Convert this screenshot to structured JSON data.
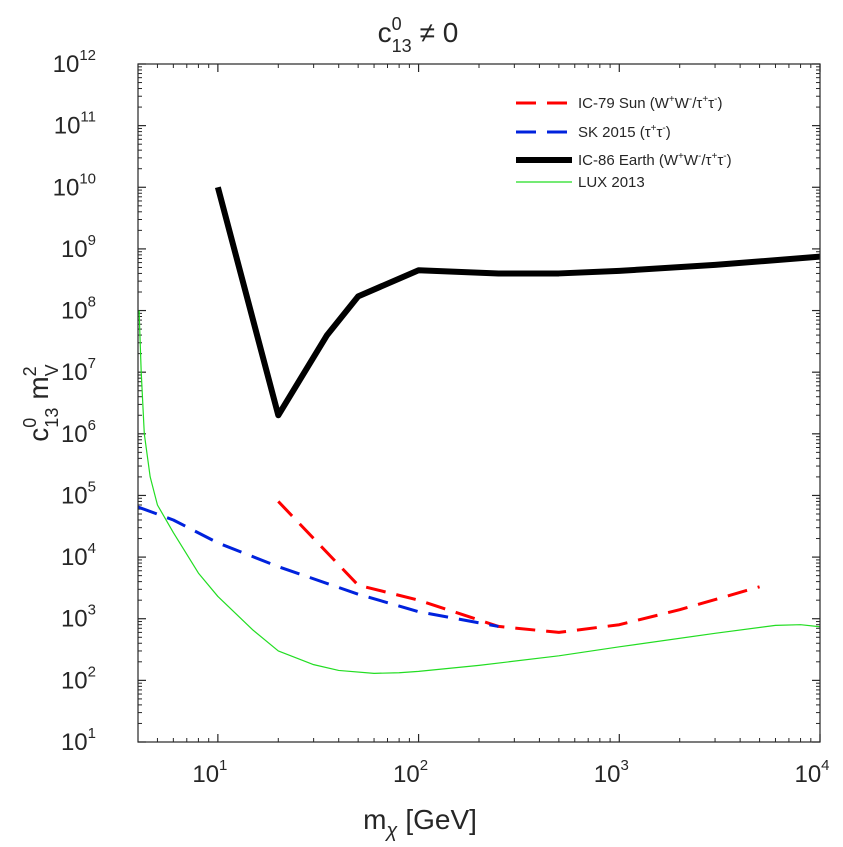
{
  "chart_data": {
    "type": "line",
    "title": {
      "base": "c",
      "sup": "0",
      "sub": "13",
      "rest": "≠ 0"
    },
    "xlabel": {
      "base": "m",
      "sub": "χ",
      "rest": "[GeV]"
    },
    "ylabel": {
      "c": "c",
      "c_sup": "0",
      "c_sub": "13",
      "m": "m",
      "m_sup": "2",
      "m_sub": "V"
    },
    "x_scale": "log",
    "y_scale": "log",
    "xlim": [
      4,
      10000
    ],
    "ylim": [
      10,
      1000000000000
    ],
    "grid": false,
    "legend_position": "top-right",
    "x_ticks": [
      {
        "base": "10",
        "exp": "1",
        "value": 10
      },
      {
        "base": "10",
        "exp": "2",
        "value": 100
      },
      {
        "base": "10",
        "exp": "3",
        "value": 1000
      },
      {
        "base": "10",
        "exp": "4",
        "value": 10000
      }
    ],
    "y_ticks": [
      {
        "base": "10",
        "exp": "1",
        "value": 10
      },
      {
        "base": "10",
        "exp": "2",
        "value": 100
      },
      {
        "base": "10",
        "exp": "3",
        "value": 1000
      },
      {
        "base": "10",
        "exp": "4",
        "value": 10000
      },
      {
        "base": "10",
        "exp": "5",
        "value": 100000
      },
      {
        "base": "10",
        "exp": "6",
        "value": 1000000
      },
      {
        "base": "10",
        "exp": "7",
        "value": 10000000
      },
      {
        "base": "10",
        "exp": "8",
        "value": 100000000
      },
      {
        "base": "10",
        "exp": "9",
        "value": 1000000000
      },
      {
        "base": "10",
        "exp": "10",
        "value": 10000000000
      },
      {
        "base": "10",
        "exp": "11",
        "value": 100000000000
      },
      {
        "base": "10",
        "exp": "12",
        "value": 1000000000000
      }
    ],
    "series": [
      {
        "id": "ic79-sun",
        "legend": [
          {
            "t": "IC-79 Sun (W"
          },
          {
            "t": "+",
            "sup": true
          },
          {
            "t": "W"
          },
          {
            "t": "-",
            "sup": true
          },
          {
            "t": "/τ"
          },
          {
            "t": "+",
            "sup": true
          },
          {
            "t": "τ"
          },
          {
            "t": "-",
            "sup": true
          },
          {
            "t": ")"
          }
        ],
        "color": "#ff0000",
        "style": "dashed",
        "points": [
          [
            20,
            80000
          ],
          [
            50,
            3500
          ],
          [
            100,
            2000
          ],
          [
            250,
            750
          ],
          [
            500,
            600
          ],
          [
            1000,
            800
          ],
          [
            2000,
            1400
          ],
          [
            5000,
            3300
          ]
        ]
      },
      {
        "id": "sk-2015",
        "legend": [
          {
            "t": "SK 2015 (τ"
          },
          {
            "t": "+",
            "sup": true
          },
          {
            "t": "τ"
          },
          {
            "t": "-",
            "sup": true
          },
          {
            "t": ")"
          }
        ],
        "color": "#0022dd",
        "style": "dashed",
        "points": [
          [
            4,
            65000
          ],
          [
            6,
            40000
          ],
          [
            10,
            17000
          ],
          [
            20,
            7000
          ],
          [
            50,
            2500
          ],
          [
            100,
            1300
          ],
          [
            250,
            750
          ]
        ]
      },
      {
        "id": "ic86-earth",
        "legend": [
          {
            "t": "IC-86 Earth (W"
          },
          {
            "t": "+",
            "sup": true
          },
          {
            "t": "W"
          },
          {
            "t": "-",
            "sup": true
          },
          {
            "t": "/τ"
          },
          {
            "t": "+",
            "sup": true
          },
          {
            "t": "τ"
          },
          {
            "t": "-",
            "sup": true
          },
          {
            "t": ")"
          }
        ],
        "color": "#000000",
        "style": "thick",
        "points": [
          [
            10,
            10000000000
          ],
          [
            20,
            2000000
          ],
          [
            35,
            40000000
          ],
          [
            50,
            170000000
          ],
          [
            100,
            450000000
          ],
          [
            250,
            400000000
          ],
          [
            500,
            400000000
          ],
          [
            1000,
            440000000
          ],
          [
            3000,
            550000000
          ],
          [
            10000,
            750000000
          ]
        ]
      },
      {
        "id": "lux-2013",
        "legend": [
          {
            "t": "LUX 2013"
          }
        ],
        "color": "#22dd22",
        "style": "thin",
        "points": [
          [
            4.05,
            100000000
          ],
          [
            4.15,
            10000000
          ],
          [
            4.3,
            1000000
          ],
          [
            4.6,
            200000
          ],
          [
            5,
            70000
          ],
          [
            6,
            25000
          ],
          [
            8,
            5500
          ],
          [
            10,
            2300
          ],
          [
            15,
            650
          ],
          [
            20,
            300
          ],
          [
            30,
            180
          ],
          [
            40,
            145
          ],
          [
            60,
            130
          ],
          [
            80,
            133
          ],
          [
            100,
            140
          ],
          [
            200,
            175
          ],
          [
            500,
            250
          ],
          [
            1000,
            350
          ],
          [
            3000,
            580
          ],
          [
            6000,
            780
          ],
          [
            8000,
            800
          ],
          [
            10000,
            740
          ]
        ]
      }
    ]
  }
}
